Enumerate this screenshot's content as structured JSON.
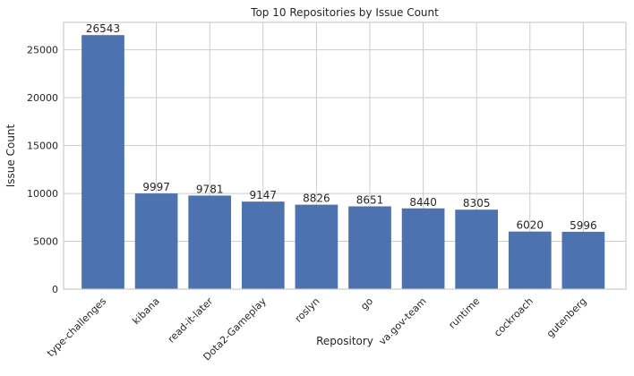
{
  "chart_data": {
    "type": "bar",
    "title": "Top 10 Repositories by Issue Count",
    "xlabel": "Repository",
    "ylabel": "Issue Count",
    "categories": [
      "type-challenges",
      "kibana",
      "read-it-later",
      "Dota2-Gameplay",
      "roslyn",
      "go",
      "va.gov-team",
      "runtime",
      "cockroach",
      "gutenberg"
    ],
    "values": [
      26543,
      9997,
      9781,
      9147,
      8826,
      8651,
      8440,
      8305,
      6020,
      5996
    ],
    "ylim": [
      0,
      27870
    ],
    "yticks": [
      0,
      5000,
      10000,
      15000,
      20000,
      25000
    ],
    "grid": true,
    "bar_color": "#4c72b0",
    "data_labels": true
  }
}
